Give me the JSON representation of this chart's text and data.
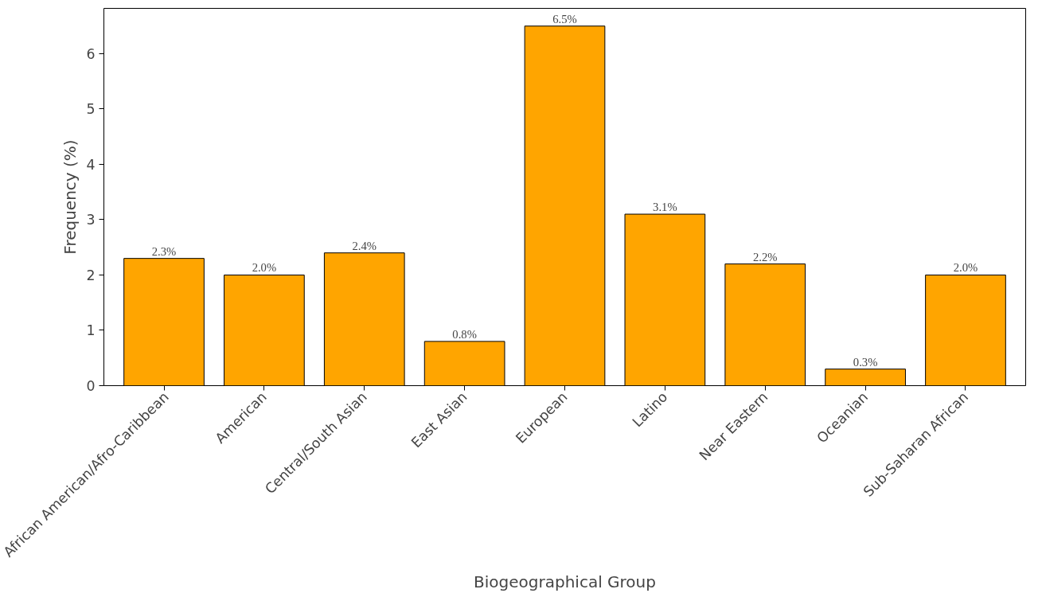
{
  "chart_data": {
    "type": "bar",
    "xlabel": "Biogeographical Group",
    "ylabel": "Frequency (%)",
    "categories": [
      "African American/Afro-Caribbean",
      "American",
      "Central/South Asian",
      "East Asian",
      "European",
      "Latino",
      "Near Eastern",
      "Oceanian",
      "Sub-Saharan African"
    ],
    "values": [
      2.3,
      2.0,
      2.4,
      0.8,
      6.5,
      3.1,
      2.2,
      0.3,
      2.0
    ],
    "value_labels": [
      "2.3%",
      "2.0%",
      "2.4%",
      "0.8%",
      "6.5%",
      "3.1%",
      "2.2%",
      "0.3%",
      "2.0%"
    ],
    "color": "#ffa500",
    "ylim": [
      0,
      6.82
    ],
    "yticks": [
      0,
      1,
      2,
      3,
      4,
      5,
      6
    ],
    "grid": false
  }
}
